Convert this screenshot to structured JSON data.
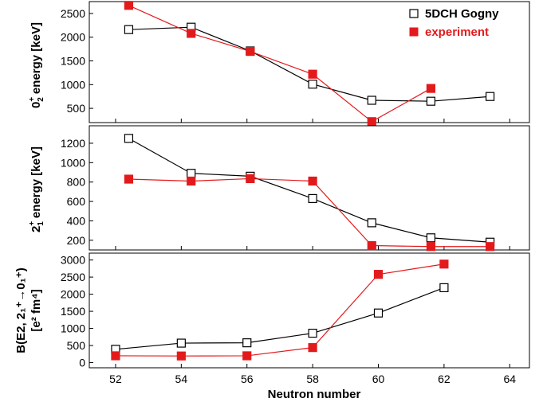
{
  "chart_data": {
    "type": "line",
    "shared_x": {
      "label": "Neutron number",
      "ticks": [
        52,
        54,
        56,
        58,
        60,
        62,
        64
      ]
    },
    "legend": {
      "placement": "top-right",
      "entries": [
        {
          "label": "5DCH Gogny",
          "marker": "open-square",
          "color": "#000000"
        },
        {
          "label": "experiment",
          "marker": "filled-square",
          "color": "#e31a1c"
        }
      ]
    },
    "panels": [
      {
        "ylabel_parts": [
          "0",
          "+",
          "2",
          " energy [keV]"
        ],
        "ylim": [
          200,
          2750
        ],
        "yticks": [
          500,
          1000,
          1500,
          2000,
          2500
        ],
        "series": [
          {
            "name": "5DCH Gogny",
            "color": "#000000",
            "marker": "open",
            "x": [
              52.4,
              54.3,
              56.1,
              58.0,
              59.8,
              61.6,
              63.4
            ],
            "y": [
              2160,
              2210,
              1710,
              1010,
              670,
              650,
              750
            ]
          },
          {
            "name": "experiment",
            "color": "#e31a1c",
            "marker": "filled",
            "x": [
              52.4,
              54.3,
              56.1,
              58.0,
              59.8,
              61.6
            ],
            "y": [
              2670,
              2080,
              1700,
              1220,
              220,
              920
            ]
          }
        ]
      },
      {
        "ylabel_parts": [
          "2",
          "+",
          "1",
          " energy [keV]"
        ],
        "ylim": [
          100,
          1380
        ],
        "yticks": [
          200,
          400,
          600,
          800,
          1000,
          1200
        ],
        "series": [
          {
            "name": "5DCH Gogny",
            "color": "#000000",
            "marker": "open",
            "x": [
              52.4,
              54.3,
              56.1,
              58.0,
              59.8,
              61.6,
              63.4
            ],
            "y": [
              1250,
              890,
              860,
              630,
              380,
              225,
              180
            ]
          },
          {
            "name": "experiment",
            "color": "#e31a1c",
            "marker": "filled",
            "x": [
              52.4,
              54.3,
              56.1,
              58.0,
              59.8,
              61.6,
              63.4
            ],
            "y": [
              830,
              810,
              835,
              810,
              145,
              135,
              135
            ]
          }
        ]
      },
      {
        "ylabel_line1": "B(E2, 2₁⁺→0₁⁺)",
        "ylabel_line2": "[e² fm⁴]",
        "ylim": [
          -150,
          3200
        ],
        "yticks": [
          0,
          500,
          1000,
          1500,
          2000,
          2500,
          3000
        ],
        "series": [
          {
            "name": "5DCH Gogny",
            "color": "#000000",
            "marker": "open",
            "x": [
              52.0,
              54.0,
              56.0,
              58.0,
              60.0,
              62.0
            ],
            "y": [
              390,
              570,
              580,
              860,
              1450,
              2190
            ]
          },
          {
            "name": "experiment",
            "color": "#e31a1c",
            "marker": "filled",
            "x": [
              52.0,
              54.0,
              56.0,
              58.0,
              60.0,
              62.0
            ],
            "y": [
              200,
              195,
              200,
              440,
              2580,
              2880
            ]
          }
        ]
      }
    ]
  }
}
